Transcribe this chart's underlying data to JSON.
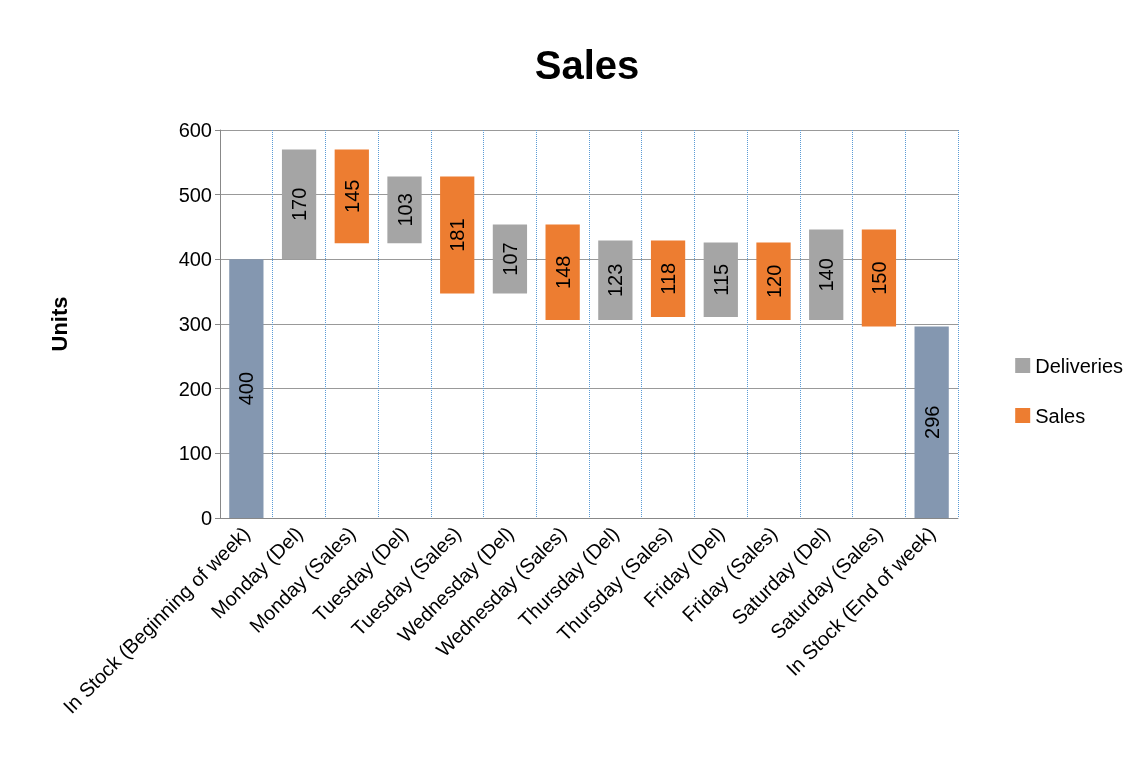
{
  "chart_data": {
    "type": "bar",
    "title": "Sales",
    "ylabel": "Units",
    "categories": [
      "In Stock (Beginning of week)",
      "Monday (Del)",
      "Monday (Sales)",
      "Tuesday (Del)",
      "Tuesday (Sales)",
      "Wednesday (Del)",
      "Wednesday (Sales)",
      "Thursday (Del)",
      "Thursday (Sales)",
      "Friday (Del)",
      "Friday (Sales)",
      "Saturday (Del)",
      "Saturday (Sales)",
      "In Stock (End of week)"
    ],
    "series": [
      {
        "color": "#8497b0",
        "values": [
          400,
          null,
          null,
          null,
          null,
          null,
          null,
          null,
          null,
          null,
          null,
          null,
          null,
          296
        ],
        "base": [
          0,
          null,
          null,
          null,
          null,
          null,
          null,
          null,
          null,
          null,
          null,
          null,
          null,
          0
        ]
      },
      {
        "name": "Deliveries",
        "color": "#a5a5a5",
        "values": [
          null,
          170,
          null,
          103,
          null,
          107,
          null,
          123,
          null,
          115,
          null,
          140,
          null,
          null
        ],
        "base": [
          null,
          400,
          null,
          425,
          null,
          347,
          null,
          306,
          null,
          311,
          null,
          306,
          null,
          null
        ]
      },
      {
        "name": "Sales",
        "color": "#ed7d31",
        "values": [
          null,
          null,
          145,
          null,
          181,
          null,
          148,
          null,
          118,
          null,
          120,
          null,
          150,
          null
        ],
        "base": [
          null,
          null,
          425,
          null,
          347,
          null,
          306,
          null,
          311,
          null,
          306,
          null,
          296,
          null
        ]
      }
    ],
    "ylim": [
      0,
      600
    ],
    "yticks": [
      0,
      100,
      200,
      300,
      400,
      500,
      600
    ],
    "grid": true,
    "legend": "right",
    "data_labels": true
  }
}
